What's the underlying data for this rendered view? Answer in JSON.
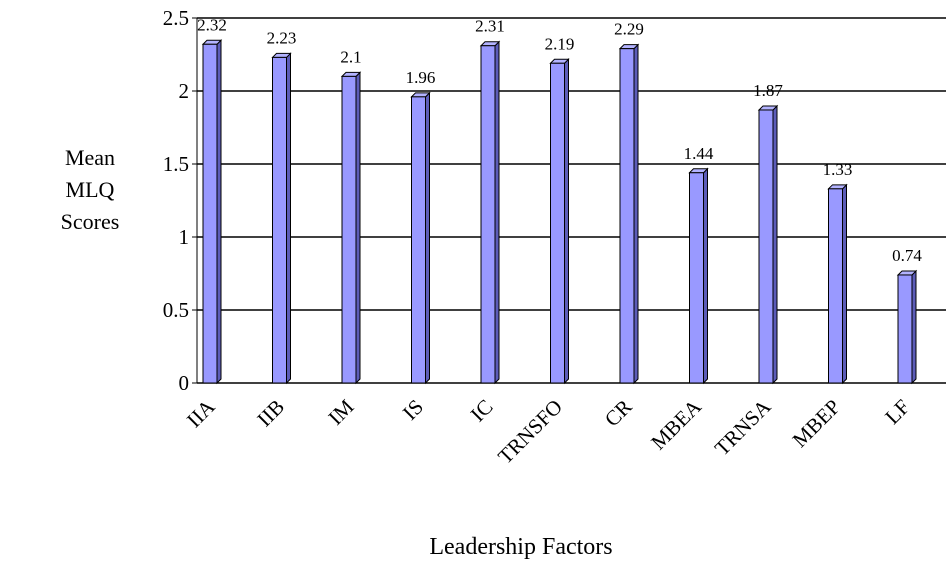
{
  "chart_data": {
    "type": "bar",
    "y_label": "Mean MLQ Scores",
    "x_label": "Leadership Factors",
    "categories": [
      "IIA",
      "IIB",
      "IM",
      "IS",
      "IC",
      "TRNSFO",
      "CR",
      "MBEA",
      "TRNSA",
      "MBEP",
      "LF"
    ],
    "values": [
      2.32,
      2.23,
      2.1,
      1.96,
      2.31,
      2.19,
      2.29,
      1.44,
      1.87,
      1.33,
      0.74
    ],
    "color": "#9999ff",
    "ylim": [
      0,
      2.5
    ],
    "yticks": [
      0,
      0.5,
      1,
      1.5,
      2,
      2.5
    ],
    "grid": true
  }
}
